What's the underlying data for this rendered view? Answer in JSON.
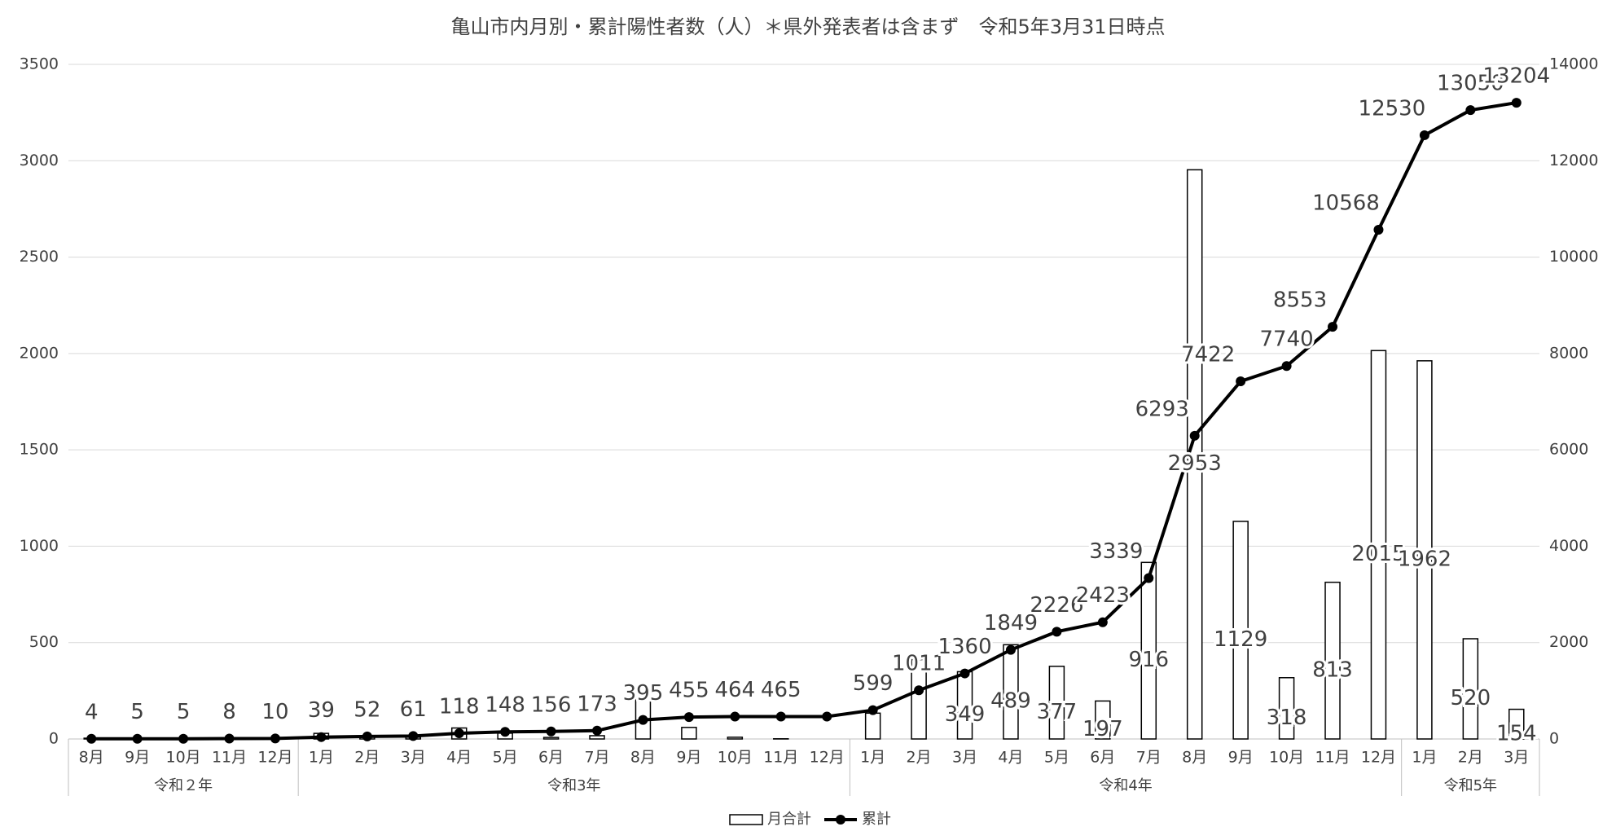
{
  "chart_data": {
    "type": "bar-line",
    "title": "亀山市内月別・累計陽性者数（人）＊県外発表者は含まず　令和5年3月31日時点",
    "categories": [
      "8月",
      "9月",
      "10月",
      "11月",
      "12月",
      "1月",
      "2月",
      "3月",
      "4月",
      "5月",
      "6月",
      "7月",
      "8月",
      "9月",
      "10月",
      "11月",
      "12月",
      "1月",
      "2月",
      "3月",
      "4月",
      "5月",
      "6月",
      "7月",
      "8月",
      "9月",
      "10月",
      "11月",
      "12月",
      "1月",
      "2月",
      "3月"
    ],
    "groups": [
      {
        "label": "令和２年",
        "count": 5
      },
      {
        "label": "令和3年",
        "count": 12
      },
      {
        "label": "令和4年",
        "count": 12
      },
      {
        "label": "令和5年",
        "count": 3
      }
    ],
    "series": [
      {
        "name": "月合計",
        "type": "bar",
        "color": "#ffffff",
        "edge": "#000000",
        "values": [
          4,
          1,
          0,
          3,
          2,
          29,
          13,
          9,
          57,
          30,
          8,
          17,
          222,
          60,
          9,
          1,
          0,
          134,
          412,
          349,
          489,
          377,
          197,
          916,
          2953,
          1129,
          318,
          813,
          2015,
          1962,
          520,
          154
        ],
        "value_labels": [
          null,
          null,
          null,
          null,
          null,
          null,
          null,
          null,
          null,
          null,
          null,
          null,
          null,
          null,
          null,
          null,
          null,
          null,
          null,
          "349",
          "489",
          "377",
          "197",
          "916",
          "2953",
          "1129",
          "318",
          "813",
          "2015",
          "1962",
          "520",
          "154"
        ]
      },
      {
        "name": "累計",
        "type": "line",
        "axis": "y2",
        "color": "#000000",
        "values": [
          4,
          5,
          5,
          8,
          10,
          39,
          52,
          61,
          118,
          148,
          156,
          173,
          395,
          455,
          464,
          465,
          465,
          599,
          1011,
          1360,
          1849,
          2226,
          2423,
          3339,
          6293,
          7422,
          7740,
          8553,
          10568,
          12530,
          13050,
          13204
        ],
        "value_labels": [
          "4",
          "5",
          "5",
          "8",
          "10",
          "39",
          "52",
          "61",
          "118",
          "148",
          "156",
          "173",
          "395",
          "455",
          "464",
          "465",
          null,
          "599",
          "1011",
          "1360",
          "1849",
          "2226",
          "2423",
          "3339",
          "6293",
          "7422",
          "7740",
          "8553",
          "10568",
          "12530",
          "13050",
          "13204"
        ]
      }
    ],
    "ylim": [
      0,
      3500
    ],
    "yticks": [
      0,
      500,
      1000,
      1500,
      2000,
      2500,
      3000,
      3500
    ],
    "y2lim": [
      0,
      14000
    ],
    "y2ticks": [
      0,
      2000,
      4000,
      6000,
      8000,
      10000,
      12000,
      14000
    ],
    "grid": true,
    "legend": "bottom"
  }
}
